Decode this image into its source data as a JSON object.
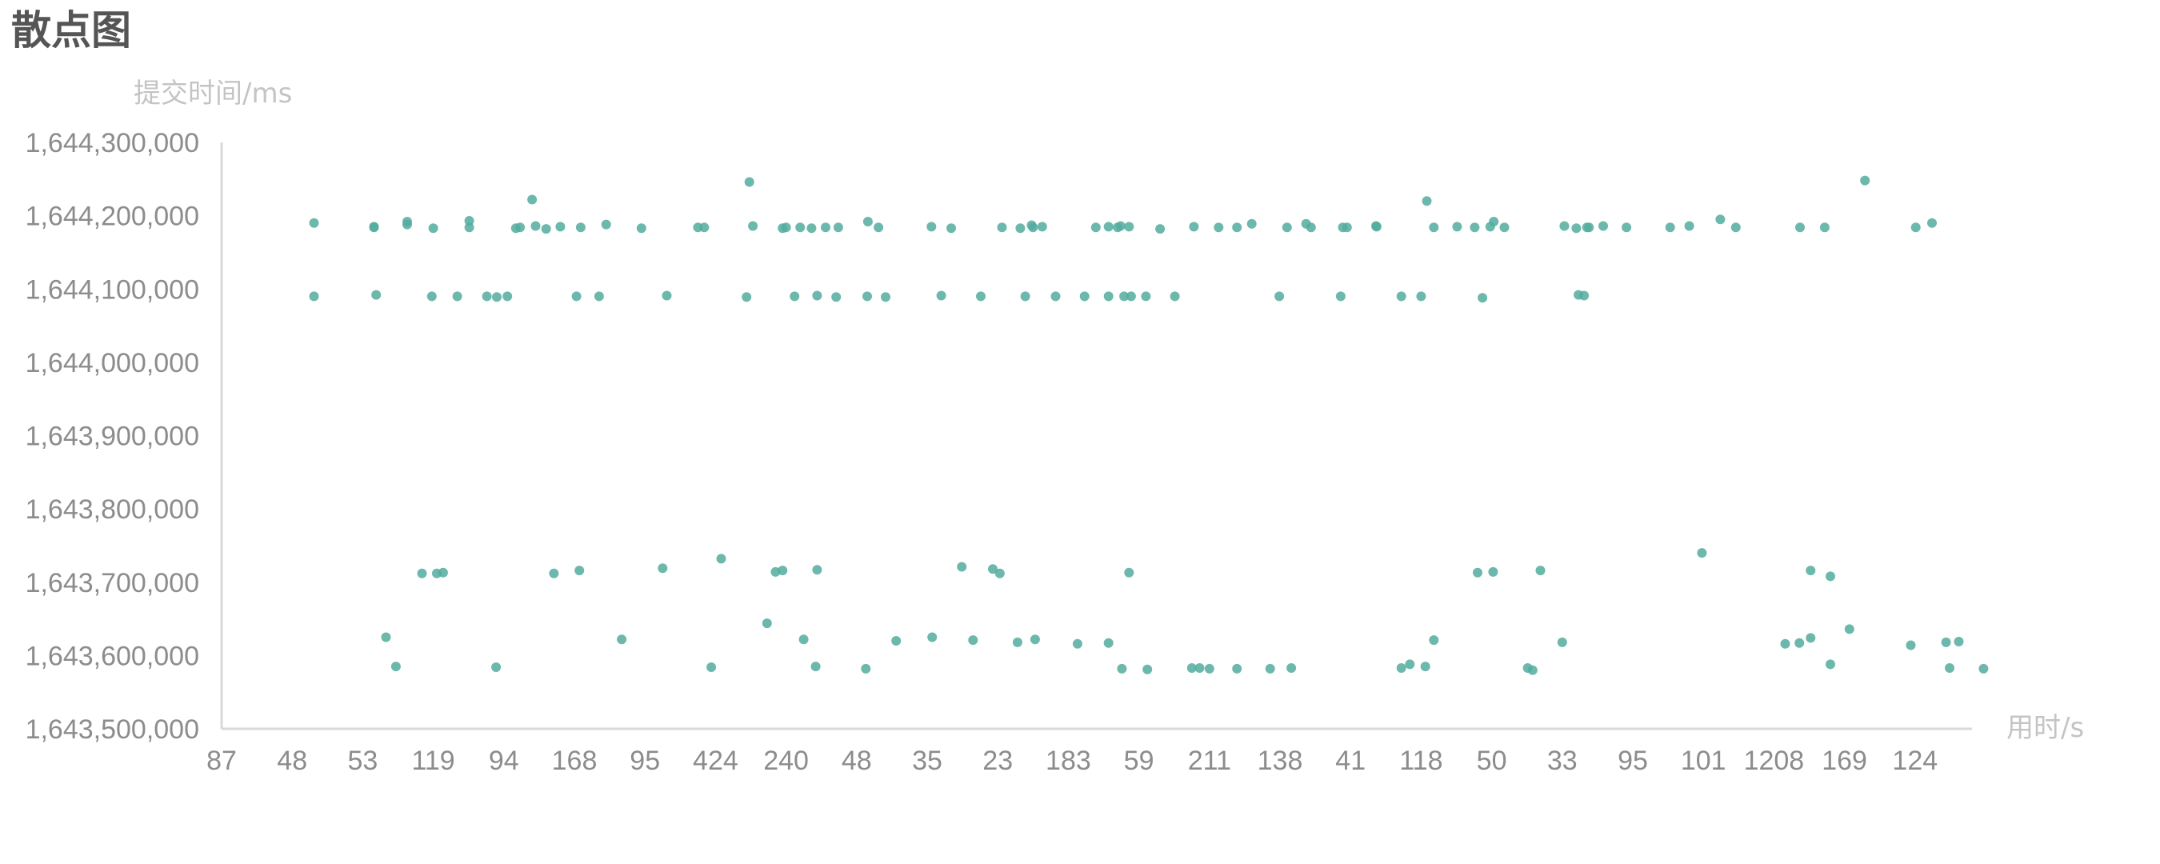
{
  "title": "散点图",
  "chart_data": {
    "type": "scatter",
    "title": "散点图",
    "xlabel": "用时/s",
    "ylabel": "提交时间/ms",
    "ylim": [
      1643500000,
      1644300000
    ],
    "y_ticks": [
      1643500000,
      1643600000,
      1643700000,
      1643800000,
      1643900000,
      1644000000,
      1644100000,
      1644200000,
      1644300000
    ],
    "y_tick_labels": [
      "1,643,500,000",
      "1,643,600,000",
      "1,643,700,000",
      "1,643,800,000",
      "1,643,900,000",
      "1,644,000,000",
      "1,644,100,000",
      "1,644,200,000",
      "1,644,300,000"
    ],
    "categories": [
      "87",
      "48",
      "53",
      "119",
      "94",
      "168",
      "95",
      "424",
      "240",
      "48",
      "35",
      "23",
      "183",
      "59",
      "211",
      "138",
      "41",
      "118",
      "50",
      "33",
      "95",
      "101",
      "1208",
      "169",
      "124"
    ],
    "x_range": [
      0,
      24.75
    ],
    "grid": false,
    "legend": "none",
    "point_color": "#52ab9d",
    "series": [
      {
        "x": [
          1.31,
          2.16,
          2.63,
          3.51,
          4.23,
          4.45,
          5.09,
          6.75,
          7.53,
          8.0,
          8.56,
          9.16,
          11.48,
          12.39,
          12.74,
          14.39,
          15.37,
          15.95,
          16.36,
          17.18,
          17.51,
          17.98,
          18.03,
          19.35,
          20.53,
          21.24,
          22.37,
          22.72,
          24.24,
          2.16,
          2.63,
          3.0,
          3.51,
          4.17,
          4.4,
          4.6,
          4.8,
          5.45,
          5.95,
          6.84,
          7.48,
          7.95,
          8.2,
          8.36,
          8.74,
          9.31,
          10.06,
          10.34,
          11.06,
          11.32,
          11.5,
          11.63,
          12.57,
          12.7,
          12.86,
          13.3,
          13.78,
          14.13,
          14.6,
          15.1,
          15.44,
          15.89,
          16.37,
          17.08,
          17.76,
          18.18,
          19.03,
          19.2,
          19.38,
          19.58,
          19.91,
          20.8,
          21.46,
          23.29,
          24.01,
          1.31,
          2.19,
          2.98,
          3.34,
          3.76,
          3.9,
          4.05,
          5.03,
          5.35,
          6.31,
          7.44,
          8.12,
          8.44,
          8.71,
          9.15,
          9.41,
          10.2,
          10.76,
          11.39,
          11.82,
          12.23,
          12.57,
          12.79,
          12.89,
          13.1,
          13.51,
          14.99,
          15.86,
          16.72,
          17.0,
          17.87,
          19.23,
          19.31,
          2.84,
          3.05,
          3.14,
          4.71,
          5.07,
          6.25,
          7.08,
          7.85,
          7.95,
          8.44,
          10.93,
          10.49,
          11.03,
          12.86,
          17.8,
          18.69,
          18.02,
          20.98,
          22.52,
          22.8,
          2.33,
          2.47,
          3.89,
          5.67,
          6.94,
          7.73,
          8.25,
          8.42,
          9.13,
          9.56,
          10.07,
          10.65,
          11.28,
          11.53,
          12.13,
          12.57,
          12.76,
          13.12,
          13.75,
          13.86,
          14.0,
          14.39,
          14.86,
          15.16,
          16.72,
          17.06,
          16.84,
          17.18,
          18.58,
          18.51,
          19.0,
          22.16,
          22.52,
          22.36,
          22.8,
          23.07,
          23.94,
          24.49,
          24.62,
          24.44,
          24.97
        ]
      }
    ],
    "y_values": [
      1644190000,
      1644185000,
      1644188000,
      1644184000,
      1644184000,
      1644186000,
      1644184000,
      1644184000,
      1644186000,
      1644184000,
      1644184000,
      1644192000,
      1644187000,
      1644184000,
      1644186000,
      1644184000,
      1644189000,
      1644184000,
      1644186000,
      1644184000,
      1644185000,
      1644185000,
      1644192000,
      1644184000,
      1644184000,
      1644195000,
      1644184000,
      1644184000,
      1644190000,
      1644184000,
      1644192000,
      1644183000,
      1644193000,
      1644183000,
      1644222000,
      1644182000,
      1644185000,
      1644188000,
      1644183000,
      1644184000,
      1644246000,
      1644183000,
      1644184000,
      1644183000,
      1644184000,
      1644184000,
      1644185000,
      1644183000,
      1644184000,
      1644183000,
      1644184000,
      1644185000,
      1644185000,
      1644184000,
      1644185000,
      1644182000,
      1644185000,
      1644184000,
      1644189000,
      1644184000,
      1644184000,
      1644184000,
      1644185000,
      1644220000,
      1644184000,
      1644184000,
      1644186000,
      1644183000,
      1644184000,
      1644186000,
      1644184000,
      1644186000,
      1644184000,
      1644248000,
      1644184000,
      1644090000,
      1644092000,
      1644090000,
      1644090000,
      1644090000,
      1644089000,
      1644090000,
      1644090000,
      1644090000,
      1644091000,
      1644089000,
      1644090000,
      1644091000,
      1644089000,
      1644090000,
      1644089000,
      1644091000,
      1644090000,
      1644090000,
      1644090000,
      1644090000,
      1644090000,
      1644090000,
      1644090000,
      1644090000,
      1644090000,
      1644090000,
      1644090000,
      1644090000,
      1644090000,
      1644088000,
      1644092000,
      1644091000,
      1643712000,
      1643712000,
      1643713000,
      1643712000,
      1643716000,
      1643719000,
      1643732000,
      1643714000,
      1643716000,
      1643717000,
      1643718000,
      1643721000,
      1643712000,
      1643713000,
      1643713000,
      1643716000,
      1643714000,
      1643740000,
      1643716000,
      1643708000,
      1643625000,
      1643585000,
      1643584000,
      1643622000,
      1643584000,
      1643644000,
      1643622000,
      1643585000,
      1643582000,
      1643620000,
      1643625000,
      1643621000,
      1643618000,
      1643622000,
      1643616000,
      1643617000,
      1643582000,
      1643581000,
      1643583000,
      1643583000,
      1643582000,
      1643582000,
      1643582000,
      1643583000,
      1643583000,
      1643585000,
      1643588000,
      1643621000,
      1643580000,
      1643583000,
      1643618000,
      1643616000,
      1643624000,
      1643617000,
      1643588000,
      1643636000,
      1643614000,
      1643583000,
      1643619000,
      1643618000,
      1643582000
    ]
  }
}
